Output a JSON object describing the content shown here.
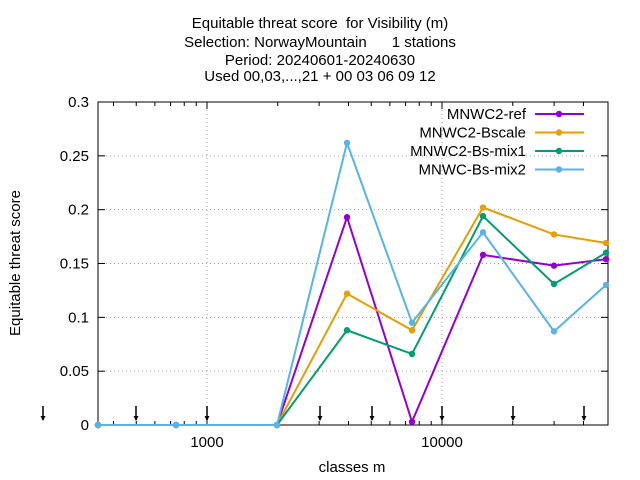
{
  "chart_data": {
    "type": "line",
    "title_lines": [
      "Equitable threat score  for Visibility (m)",
      "Selection: NorwayMountain      1 stations",
      "Period: 20240601-20240630",
      "Used 00,03,...,21 + 00 03 06 09 12"
    ],
    "xlabel": "classes m",
    "ylabel": "Equitable threat score",
    "xscale": "log",
    "xlim": [
      350,
      5200000
    ],
    "ylim": [
      0,
      0.3
    ],
    "x_ticks": [
      1000,
      10000
    ],
    "x_tick_labels": [
      "1000",
      "10000"
    ],
    "y_ticks": [
      0,
      0.05,
      0.1,
      0.15,
      0.2,
      0.25,
      0.3
    ],
    "y_tick_labels": [
      "0",
      "0.05",
      "0.1",
      "0.15",
      "0.2",
      "0.25",
      "0.3"
    ],
    "grid": true,
    "legend_position": "top-right",
    "arrow_markers_x": [
      350,
      500,
      1000,
      2000,
      3000,
      5000,
      10000,
      20000,
      40000
    ],
    "x": [
      350,
      700,
      2000,
      3900,
      7300,
      14500,
      29000,
      50000
    ],
    "series": [
      {
        "name": "MNWC2-ref",
        "color": "#9400d3",
        "values": [
          0,
          0,
          0,
          0.193,
          0.003,
          0.158,
          0.148,
          0.154
        ]
      },
      {
        "name": "MNWC2-Bscale",
        "color": "#e69f00",
        "values": [
          0,
          0,
          0,
          0.122,
          0.088,
          0.202,
          0.177,
          0.169
        ]
      },
      {
        "name": "MNWC2-Bs-mix1",
        "color": "#009e73",
        "values": [
          0,
          0,
          0,
          0.088,
          0.066,
          0.194,
          0.131,
          0.16
        ]
      },
      {
        "name": "MNWC-Bs-mix2",
        "color": "#56b4e9",
        "values": [
          0,
          0,
          0,
          0.262,
          0.095,
          0.179,
          0.087,
          0.13
        ]
      }
    ]
  }
}
